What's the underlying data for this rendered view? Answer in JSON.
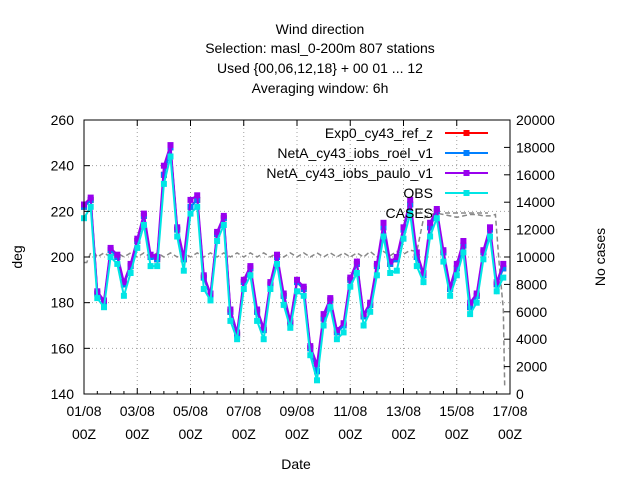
{
  "chart_data": {
    "type": "line",
    "title": [
      "Wind direction",
      "Selection: masl_0-200m    807 stations",
      "Used {00,06,12,18} + 00 01 ... 12",
      "Averaging window:  6h"
    ],
    "xlabel": "Date",
    "ylabel": "deg",
    "y2label": "No cases",
    "xlim": [
      0,
      16
    ],
    "ylim": [
      140,
      260
    ],
    "y2lim": [
      0,
      20000
    ],
    "x_ticks": [
      {
        "x": 0,
        "top": "01/08",
        "bottom": "00Z"
      },
      {
        "x": 2,
        "top": "03/08",
        "bottom": "00Z"
      },
      {
        "x": 4,
        "top": "05/08",
        "bottom": "00Z"
      },
      {
        "x": 6,
        "top": "07/08",
        "bottom": "00Z"
      },
      {
        "x": 8,
        "top": "09/08",
        "bottom": "00Z"
      },
      {
        "x": 10,
        "top": "11/08",
        "bottom": "00Z"
      },
      {
        "x": 12,
        "top": "13/08",
        "bottom": "00Z"
      },
      {
        "x": 14,
        "top": "15/08",
        "bottom": "00Z"
      },
      {
        "x": 16,
        "top": "17/08",
        "bottom": "00Z"
      }
    ],
    "y_ticks": [
      140,
      160,
      180,
      200,
      220,
      240,
      260
    ],
    "y2_ticks": [
      0,
      2000,
      4000,
      6000,
      8000,
      10000,
      12000,
      14000,
      16000,
      18000,
      20000
    ],
    "legend_position": "top-right",
    "x_days": [
      0,
      0.25,
      0.5,
      0.75,
      1,
      1.25,
      1.5,
      1.75,
      2,
      2.25,
      2.5,
      2.75,
      3,
      3.25,
      3.5,
      3.75,
      4,
      4.25,
      4.5,
      4.75,
      5,
      5.25,
      5.5,
      5.75,
      6,
      6.25,
      6.5,
      6.75,
      7,
      7.25,
      7.5,
      7.75,
      8,
      8.25,
      8.5,
      8.75,
      9,
      9.25,
      9.5,
      9.75,
      10,
      10.25,
      10.5,
      10.75,
      11,
      11.25,
      11.5,
      11.75,
      12,
      12.25,
      12.5,
      12.75,
      13,
      13.25,
      13.5,
      13.75,
      14,
      14.25,
      14.5,
      14.75,
      15,
      15.25,
      15.5,
      15.75
    ],
    "series": [
      {
        "name": "Exp0_cy43_ref_z",
        "color": "#ff0000",
        "marker": "square",
        "values": [
          222,
          225,
          184,
          180,
          203,
          200,
          188,
          196,
          207,
          218,
          200,
          199,
          236,
          248,
          212,
          199,
          222,
          225,
          191,
          183,
          210,
          217,
          176,
          166,
          189,
          195,
          176,
          168,
          188,
          200,
          183,
          171,
          189,
          186,
          160,
          150,
          173,
          181,
          167,
          170,
          190,
          197,
          174,
          179,
          196,
          213,
          197,
          199,
          212,
          223,
          200,
          192,
          213,
          220,
          202,
          186,
          195,
          205,
          178,
          183,
          202,
          212,
          188,
          195
        ]
      },
      {
        "name": "NetA_cy43_iobs_roel_v1",
        "color": "#0080ff",
        "marker": "square",
        "values": [
          222,
          225,
          184,
          180,
          203,
          200,
          188,
          196,
          207,
          218,
          200,
          199,
          236,
          248,
          212,
          199,
          222,
          225,
          191,
          183,
          210,
          217,
          176,
          166,
          189,
          195,
          176,
          168,
          188,
          200,
          183,
          171,
          189,
          186,
          160,
          150,
          173,
          181,
          167,
          170,
          190,
          197,
          174,
          179,
          196,
          213,
          197,
          199,
          212,
          223,
          200,
          192,
          213,
          220,
          202,
          186,
          195,
          205,
          178,
          183,
          202,
          212,
          188,
          195
        ]
      },
      {
        "name": "NetA_cy43_iobs_paulo_v1",
        "color": "#9900ee",
        "marker": "square",
        "values": [
          223,
          226,
          185,
          181,
          204,
          201,
          189,
          197,
          208,
          219,
          201,
          200,
          240,
          249,
          213,
          200,
          225,
          227,
          192,
          184,
          211,
          218,
          177,
          167,
          190,
          196,
          177,
          169,
          189,
          201,
          184,
          172,
          190,
          187,
          161,
          153,
          175,
          182,
          168,
          171,
          191,
          198,
          175,
          180,
          197,
          215,
          198,
          200,
          213,
          225,
          202,
          193,
          215,
          221,
          203,
          187,
          197,
          207,
          180,
          184,
          203,
          213,
          189,
          197
        ]
      },
      {
        "name": "OBS",
        "color": "#00e5e5",
        "marker": "square",
        "values": [
          217,
          222,
          182,
          178,
          200,
          197,
          183,
          193,
          204,
          214,
          196,
          196,
          232,
          244,
          209,
          194,
          219,
          222,
          186,
          181,
          207,
          214,
          172,
          164,
          186,
          192,
          172,
          164,
          186,
          197,
          179,
          169,
          185,
          183,
          157,
          146,
          170,
          178,
          164,
          167,
          187,
          193,
          170,
          176,
          192,
          209,
          193,
          194,
          208,
          219,
          196,
          189,
          209,
          217,
          198,
          183,
          192,
          202,
          175,
          180,
          199,
          209,
          185,
          191
        ]
      }
    ],
    "cases": {
      "name": "CASES",
      "color": "#888888",
      "x": [
        0,
        0.1,
        0.25,
        0.4,
        0.5,
        0.75,
        1,
        1.25,
        1.5,
        1.75,
        2,
        2.25,
        2.5,
        2.75,
        3,
        3.25,
        3.5,
        3.75,
        4,
        4.25,
        4.5,
        4.75,
        5,
        5.25,
        5.5,
        5.75,
        6,
        6.25,
        6.5,
        6.75,
        7,
        7.25,
        7.5,
        7.75,
        8,
        8.25,
        8.5,
        8.75,
        9,
        9.25,
        9.5,
        9.75,
        10,
        10.25,
        10.5,
        10.75,
        11,
        11.25,
        11.5,
        11.75,
        12,
        12.25,
        12.5,
        12.75,
        13,
        13.25,
        13.5,
        13.75,
        14,
        14.25,
        14.5,
        14.75,
        15,
        15.25,
        15.45,
        15.6,
        15.75,
        15.8
      ],
      "values": [
        9600,
        9600,
        10300,
        10300,
        10000,
        10300,
        10000,
        10300,
        10000,
        10300,
        10000,
        10300,
        10000,
        10300,
        10000,
        10300,
        10000,
        10300,
        10000,
        10300,
        10000,
        10300,
        10000,
        10300,
        10000,
        10300,
        10000,
        10300,
        10000,
        10300,
        10000,
        10300,
        10000,
        10300,
        10000,
        10300,
        10000,
        10300,
        10000,
        10300,
        10000,
        10300,
        10000,
        10300,
        10000,
        10400,
        10000,
        10400,
        10100,
        10400,
        10200,
        10500,
        10400,
        12800,
        13100,
        13200,
        13100,
        13000,
        12900,
        13000,
        13100,
        13100,
        13000,
        13000,
        13100,
        9400,
        6200,
        500
      ]
    }
  }
}
